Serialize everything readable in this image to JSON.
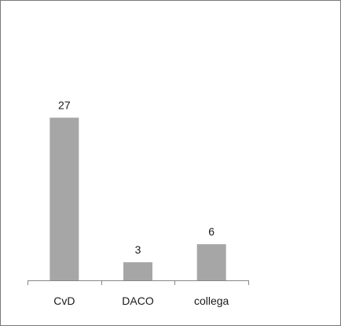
{
  "chart_data": {
    "type": "bar",
    "title": "",
    "xlabel": "",
    "ylabel": "",
    "categories": [
      "CvD",
      "DACO",
      "collega"
    ],
    "values": [
      27,
      3,
      6
    ],
    "data_labels": [
      "27",
      "3",
      "6"
    ],
    "ylim": [
      0,
      30
    ],
    "grid": false,
    "legend": "none",
    "bar_color": "#a6a6a6",
    "axis_color": "#888888"
  }
}
